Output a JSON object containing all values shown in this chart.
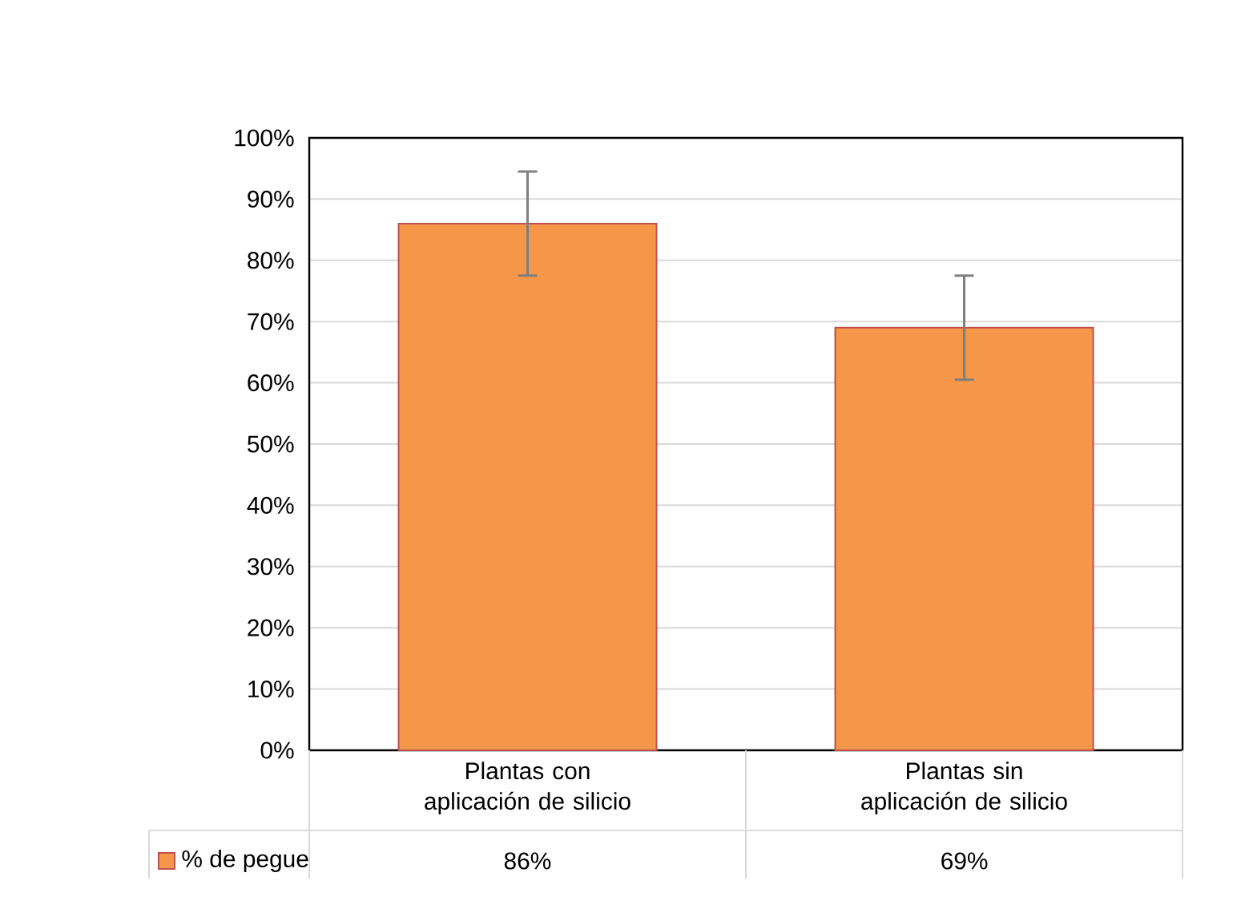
{
  "chart_data": {
    "type": "bar",
    "categories": [
      "Plantas con aplicación de silicio",
      "Plantas sin aplicación de silicio"
    ],
    "series": [
      {
        "name": "% de pegue",
        "color": "#f59649",
        "values": [
          86,
          69
        ],
        "errors": [
          8.5,
          8.5
        ],
        "value_labels": [
          "86%",
          "69%"
        ]
      }
    ],
    "ylim": [
      0,
      100
    ],
    "yticks": [
      {
        "value": 0,
        "label": "0%"
      },
      {
        "value": 10,
        "label": "10%"
      },
      {
        "value": 20,
        "label": "20%"
      },
      {
        "value": 30,
        "label": "30%"
      },
      {
        "value": 40,
        "label": "40%"
      },
      {
        "value": 50,
        "label": "50%"
      },
      {
        "value": 60,
        "label": "60%"
      },
      {
        "value": 70,
        "label": "70%"
      },
      {
        "value": 80,
        "label": "80%"
      },
      {
        "value": 90,
        "label": "90%"
      },
      {
        "value": 100,
        "label": "100%"
      }
    ],
    "grid": "y",
    "legend": "bottom"
  }
}
